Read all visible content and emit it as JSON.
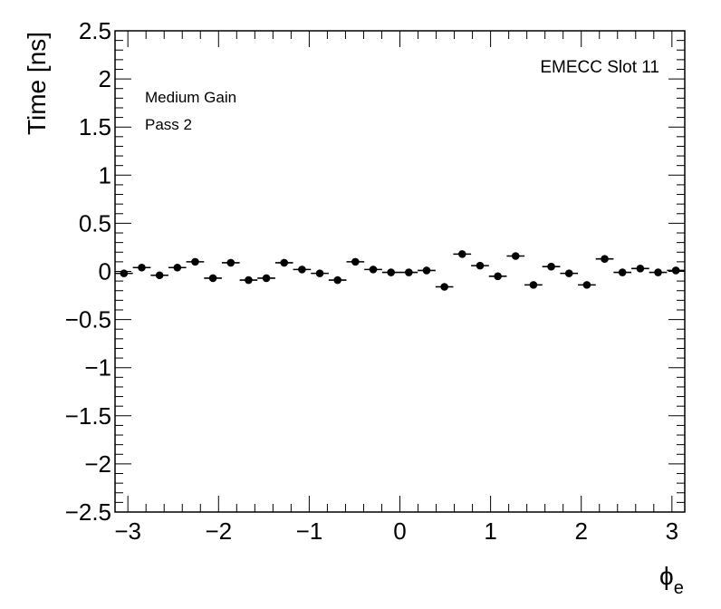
{
  "chart_data": {
    "type": "scatter",
    "ylabel": "Time [ns]",
    "xlabel": "ϕ",
    "xlabel_sub": "e",
    "xlim": [
      -3.14159,
      3.14159
    ],
    "ylim": [
      -2.5,
      2.5
    ],
    "x_ticks": [
      -3,
      -2,
      -1,
      0,
      1,
      2,
      3
    ],
    "x_tick_labels": [
      "−3",
      "−2",
      "−1",
      "0",
      "1",
      "2",
      "3"
    ],
    "y_ticks": [
      -2.5,
      -2,
      -1.5,
      -1,
      -0.5,
      0,
      0.5,
      1,
      1.5,
      2,
      2.5
    ],
    "y_tick_labels": [
      "−2.5",
      "−2",
      "−1.5",
      "−1",
      "−0.5",
      "0",
      "0.5",
      "1",
      "1.5",
      "2",
      "2.5"
    ],
    "annotations": {
      "slot": "EMECC Slot 11",
      "gain": "Medium Gain",
      "pass": "Pass 2"
    },
    "x_bin_halfwidth": 0.09817,
    "series": [
      {
        "x": [
          -3.0434,
          -2.8471,
          -2.6507,
          -2.4544,
          -2.258,
          -2.0617,
          -1.8653,
          -1.669,
          -1.4726,
          -1.2763,
          -1.0799,
          -0.8836,
          -0.6872,
          -0.4909,
          -0.2945,
          -0.0982,
          0.0982,
          0.2945,
          0.4909,
          0.6872,
          0.8836,
          1.0799,
          1.2763,
          1.4726,
          1.669,
          1.8653,
          2.0617,
          2.258,
          2.4544,
          2.6507,
          2.8471,
          3.0434
        ],
        "y": [
          -0.02,
          0.04,
          -0.04,
          0.04,
          0.1,
          -0.07,
          0.09,
          -0.09,
          -0.07,
          0.09,
          0.02,
          -0.02,
          -0.09,
          0.1,
          0.02,
          -0.01,
          -0.01,
          0.01,
          -0.16,
          0.18,
          0.06,
          -0.05,
          0.16,
          -0.14,
          0.05,
          -0.02,
          -0.14,
          0.13,
          -0.01,
          0.03,
          -0.01,
          0.01
        ]
      }
    ]
  }
}
